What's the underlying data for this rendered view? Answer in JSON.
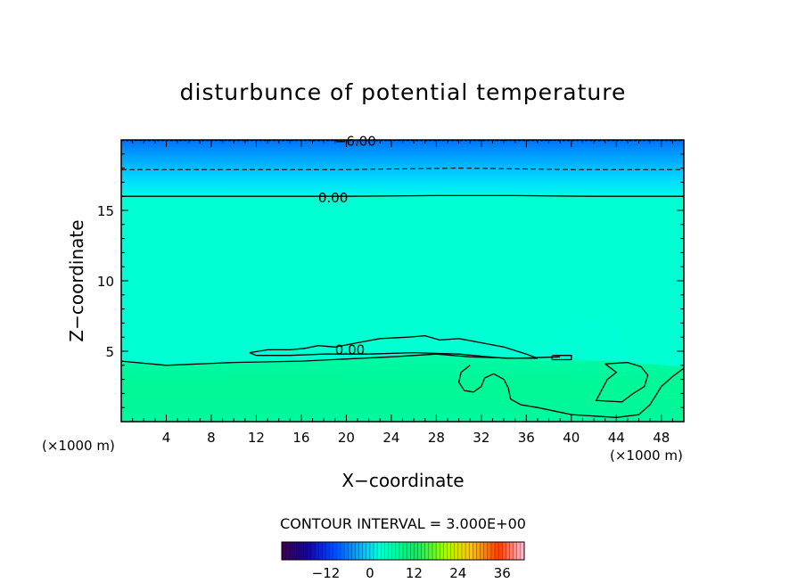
{
  "chart_data": {
    "type": "heatmap",
    "title": "disturbunce of potential temperature",
    "xlabel": "X−coordinate",
    "ylabel": "Z−coordinate",
    "x_unit": "(×1000 m)",
    "y_unit": "(×1000 m)",
    "xlim": [
      0,
      50
    ],
    "ylim": [
      0,
      20
    ],
    "x_ticks": [
      4,
      8,
      12,
      16,
      20,
      24,
      28,
      32,
      36,
      40,
      44,
      48
    ],
    "y_ticks": [
      5,
      10,
      15
    ],
    "grid": false,
    "contour_interval_text": "CONTOUR INTERVAL = 3.000E+00",
    "contour_labels": [
      {
        "text": "−6.00",
        "x": 19,
        "z": 19.9
      },
      {
        "text": "0.00",
        "x": 17.5,
        "z": 15.9
      },
      {
        "text": "0.00",
        "x": 19.0,
        "z": 5.1
      }
    ],
    "contour_lines": [
      {
        "level": 0,
        "style": "solid",
        "points": [
          [
            0,
            16.0
          ],
          [
            10,
            16.0
          ],
          [
            20,
            16.0
          ],
          [
            28,
            16.05
          ],
          [
            35,
            16.05
          ],
          [
            42,
            16.0
          ],
          [
            50,
            16.0
          ]
        ]
      },
      {
        "level": -3,
        "style": "dashed",
        "points": [
          [
            0,
            17.9
          ],
          [
            10,
            17.9
          ],
          [
            20,
            17.9
          ],
          [
            30,
            18.0
          ],
          [
            40,
            17.9
          ],
          [
            50,
            17.9
          ]
        ]
      },
      {
        "level": -6,
        "style": "dashed",
        "points": [
          [
            0,
            19.95
          ],
          [
            50,
            19.95
          ]
        ]
      },
      {
        "level": 0,
        "style": "solid",
        "points": [
          [
            0,
            4.3
          ],
          [
            4,
            4.0
          ],
          [
            10,
            4.2
          ],
          [
            16,
            4.3
          ],
          [
            24,
            4.6
          ],
          [
            28,
            4.8
          ],
          [
            31,
            4.6
          ],
          [
            35,
            4.5
          ],
          [
            39,
            4.6
          ]
        ]
      },
      {
        "level": 0,
        "style": "solid",
        "points": [
          [
            11.4,
            4.9
          ],
          [
            13,
            5.1
          ],
          [
            15,
            5.1
          ],
          [
            16.3,
            5.2
          ],
          [
            17.5,
            5.4
          ],
          [
            19,
            5.3
          ],
          [
            21,
            5.6
          ],
          [
            23,
            5.9
          ],
          [
            25.5,
            6.0
          ],
          [
            27,
            6.1
          ],
          [
            28.3,
            5.8
          ],
          [
            30,
            5.9
          ],
          [
            32,
            5.6
          ],
          [
            34,
            5.3
          ],
          [
            36,
            4.8
          ],
          [
            37,
            4.5
          ],
          [
            34,
            4.5
          ],
          [
            30,
            4.8
          ],
          [
            26,
            4.9
          ],
          [
            22,
            4.8
          ],
          [
            18,
            4.8
          ],
          [
            15,
            4.7
          ],
          [
            12,
            4.7
          ],
          [
            11.4,
            4.9
          ]
        ]
      },
      {
        "level": 0,
        "style": "solid",
        "points": [
          [
            38.3,
            4.7
          ],
          [
            40,
            4.7
          ],
          [
            40,
            4.4
          ],
          [
            38.3,
            4.4
          ],
          [
            38.3,
            4.7
          ]
        ]
      },
      {
        "level": 0,
        "style": "solid",
        "points": [
          [
            31,
            4.0
          ],
          [
            30.2,
            3.5
          ],
          [
            30.0,
            2.8
          ],
          [
            30.5,
            2.2
          ],
          [
            31.3,
            2.1
          ],
          [
            32,
            2.5
          ],
          [
            32.3,
            3.1
          ],
          [
            33.1,
            3.4
          ],
          [
            34,
            3.0
          ],
          [
            34.4,
            2.4
          ],
          [
            34.6,
            1.6
          ],
          [
            35.5,
            1.2
          ],
          [
            37,
            1.0
          ],
          [
            40,
            0.5
          ],
          [
            44,
            0.3
          ],
          [
            46,
            0.5
          ],
          [
            47,
            1.2
          ],
          [
            48,
            2.5
          ],
          [
            49,
            3.2
          ],
          [
            50,
            3.8
          ]
        ]
      },
      {
        "level": 0,
        "style": "solid",
        "points": [
          [
            43,
            4.1
          ],
          [
            44,
            3.5
          ],
          [
            43.2,
            3.0
          ],
          [
            42.2,
            1.5
          ],
          [
            44.5,
            1.4
          ],
          [
            45.5,
            2.0
          ],
          [
            46.5,
            2.5
          ],
          [
            46.8,
            3.3
          ],
          [
            46.2,
            3.9
          ],
          [
            45.0,
            4.2
          ],
          [
            43,
            4.1
          ]
        ]
      }
    ],
    "colorbar": {
      "tick_labels": [
        "−12",
        "0",
        "12",
        "24",
        "36"
      ],
      "tick_values": [
        -12,
        0,
        12,
        24,
        36
      ],
      "range": [
        -24,
        42
      ]
    },
    "colors": {
      "field_background": "#00ffd2",
      "lower_layer": "#00f88e",
      "upper_band_deep": "#0090ff",
      "upper_band_light": "#00d8ff"
    }
  }
}
